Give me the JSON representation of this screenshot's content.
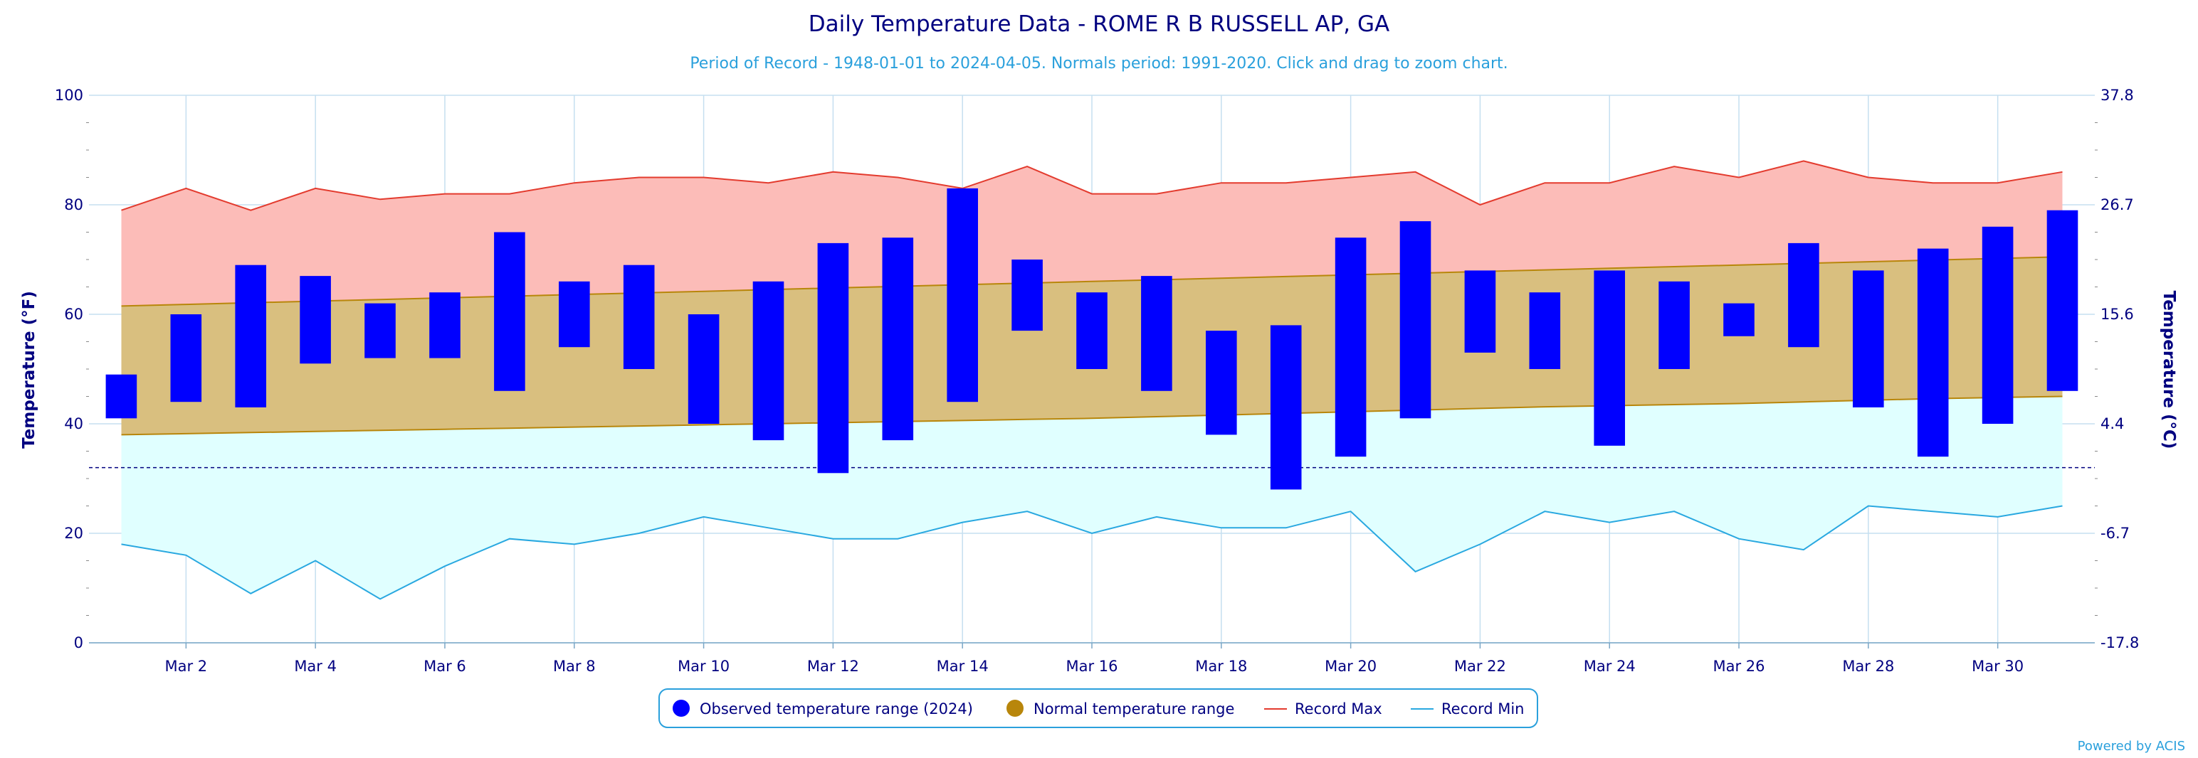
{
  "title": "Daily Temperature Data - ROME R B RUSSELL AP, GA",
  "subtitle": "Period of Record - 1948-01-01 to 2024-04-05. Normals period: 1991-2020. Click and drag to zoom chart.",
  "credits": "Powered by ACIS",
  "colors": {
    "title": "#000080",
    "subtitle": "#2aa0dc",
    "observed": "#0000ff",
    "normal_fill": "#d9bf7f",
    "normal_line": "#b8860b",
    "normal_legend": "#b8860b",
    "record_max_fill": "#fcbcb8",
    "record_max_line": "#e33b2e",
    "record_min_fill": "#e0ffff",
    "record_min_line": "#29a8e0",
    "grid": "#c5dff0",
    "freeze_line": "#000080",
    "axis_text": "#000080"
  },
  "chart_data": {
    "type": "bar",
    "x_label": "",
    "y_label_left": "Temperature (°F)",
    "y_label_right": "Temperature (°C)",
    "ylim": [
      0,
      100
    ],
    "y_ticks_left": [
      "0",
      "20",
      "40",
      "60",
      "80",
      "100"
    ],
    "y_ticks_right": [
      "-17.8",
      "-6.7",
      "4.4",
      "15.6",
      "26.7",
      "37.8"
    ],
    "freezing_line": 32,
    "days": [
      1,
      2,
      3,
      4,
      5,
      6,
      7,
      8,
      9,
      10,
      11,
      12,
      13,
      14,
      15,
      16,
      17,
      18,
      19,
      20,
      21,
      22,
      23,
      24,
      25,
      26,
      27,
      28,
      29,
      30,
      31
    ],
    "x_tick_labels": [
      "Mar 2",
      "Mar 4",
      "Mar 6",
      "Mar 8",
      "Mar 10",
      "Mar 12",
      "Mar 14",
      "Mar 16",
      "Mar 18",
      "Mar 20",
      "Mar 22",
      "Mar 24",
      "Mar 26",
      "Mar 28",
      "Mar 30"
    ],
    "x_tick_days": [
      2,
      4,
      6,
      8,
      10,
      12,
      14,
      16,
      18,
      20,
      22,
      24,
      26,
      28,
      30
    ],
    "series": [
      {
        "name": "Observed temperature range (2024)",
        "low": [
          41,
          44,
          43,
          51,
          52,
          52,
          46,
          54,
          50,
          40,
          37,
          31,
          37,
          44,
          57,
          50,
          46,
          38,
          28,
          34,
          41,
          53,
          50,
          36,
          50,
          56,
          54,
          43,
          34,
          40,
          46
        ],
        "high": [
          49,
          60,
          69,
          67,
          62,
          64,
          75,
          66,
          69,
          60,
          66,
          73,
          74,
          83,
          70,
          64,
          67,
          57,
          58,
          74,
          77,
          68,
          64,
          68,
          66,
          62,
          73,
          68,
          72,
          76,
          79
        ]
      },
      {
        "name": "Normal temperature range",
        "low": [
          38,
          38.2,
          38.4,
          38.6,
          38.8,
          39.0,
          39.2,
          39.4,
          39.6,
          39.8,
          40.0,
          40.2,
          40.4,
          40.6,
          40.8,
          41.0,
          41.3,
          41.6,
          41.9,
          42.2,
          42.5,
          42.8,
          43.1,
          43.3,
          43.5,
          43.7,
          44.0,
          44.3,
          44.6,
          44.8,
          45.0
        ],
        "high": [
          61.5,
          61.8,
          62.1,
          62.4,
          62.7,
          63.0,
          63.3,
          63.6,
          63.9,
          64.2,
          64.5,
          64.8,
          65.1,
          65.4,
          65.7,
          66.0,
          66.3,
          66.6,
          66.9,
          67.2,
          67.5,
          67.8,
          68.1,
          68.4,
          68.7,
          69.0,
          69.3,
          69.6,
          69.9,
          70.2,
          70.5
        ]
      },
      {
        "name": "Record Max",
        "values": [
          79,
          83,
          79,
          83,
          81,
          82,
          82,
          84,
          85,
          85,
          84,
          86,
          85,
          83,
          87,
          82,
          82,
          84,
          84,
          85,
          86,
          80,
          84,
          84,
          87,
          85,
          88,
          85,
          84,
          84,
          86
        ]
      },
      {
        "name": "Record Min",
        "values": [
          18,
          16,
          9,
          15,
          8,
          14,
          19,
          18,
          20,
          23,
          21,
          19,
          19,
          22,
          24,
          20,
          23,
          21,
          21,
          24,
          13,
          18,
          24,
          22,
          24,
          19,
          17,
          25,
          24,
          23,
          25
        ]
      }
    ],
    "legend_position": "bottom-center"
  }
}
